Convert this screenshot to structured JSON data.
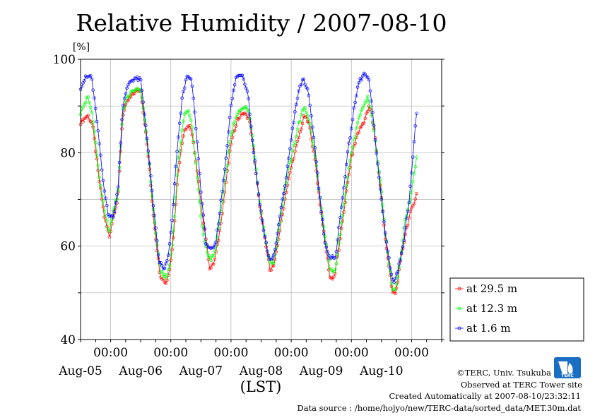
{
  "chart_data": {
    "type": "line",
    "title": "Relative Humidity / 2007-08-10",
    "unit_label": "[%]",
    "xlabel": "(LST)",
    "ylim": [
      40,
      100
    ],
    "yticks": [
      40,
      60,
      80,
      100
    ],
    "grid": true,
    "x_range_days": [
      -0.5,
      5.5
    ],
    "xticks": [
      {
        "time": "00:00",
        "date": "Aug-05"
      },
      {
        "time": "00:00",
        "date": "Aug-06"
      },
      {
        "time": "00:00",
        "date": "Aug-07"
      },
      {
        "time": "00:00",
        "date": "Aug-08"
      },
      {
        "time": "00:00",
        "date": "Aug-09"
      },
      {
        "time": "00:00",
        "date": "Aug-10"
      }
    ],
    "legend_position": "bottom-right outside",
    "series": [
      {
        "name": "at 29.5 m",
        "color": "#ff0000",
        "keypoints": [
          [
            -0.5,
            86.5
          ],
          [
            -0.38,
            88
          ],
          [
            -0.3,
            86
          ],
          [
            -0.2,
            75
          ],
          [
            -0.1,
            66
          ],
          [
            -0.02,
            62
          ],
          [
            0.05,
            67
          ],
          [
            0.12,
            70
          ],
          [
            0.2,
            88
          ],
          [
            0.28,
            91
          ],
          [
            0.4,
            93
          ],
          [
            0.5,
            93.5
          ],
          [
            0.62,
            80
          ],
          [
            0.72,
            65
          ],
          [
            0.82,
            54
          ],
          [
            0.92,
            52
          ],
          [
            0.98,
            55
          ],
          [
            1.05,
            63
          ],
          [
            1.12,
            76
          ],
          [
            1.22,
            85
          ],
          [
            1.32,
            86
          ],
          [
            1.4,
            80
          ],
          [
            1.5,
            69
          ],
          [
            1.58,
            62
          ],
          [
            1.65,
            55
          ],
          [
            1.72,
            56.5
          ],
          [
            1.8,
            62
          ],
          [
            1.9,
            72
          ],
          [
            2.0,
            82
          ],
          [
            2.1,
            87
          ],
          [
            2.2,
            88.5
          ],
          [
            2.3,
            87.5
          ],
          [
            2.38,
            80
          ],
          [
            2.48,
            68
          ],
          [
            2.58,
            60
          ],
          [
            2.65,
            55
          ],
          [
            2.72,
            56
          ],
          [
            2.82,
            64
          ],
          [
            2.92,
            72
          ],
          [
            3.02,
            78
          ],
          [
            3.12,
            83
          ],
          [
            3.22,
            88
          ],
          [
            3.3,
            86
          ],
          [
            3.4,
            78
          ],
          [
            3.48,
            69
          ],
          [
            3.56,
            61
          ],
          [
            3.65,
            53
          ],
          [
            3.72,
            53.5
          ],
          [
            3.8,
            60
          ],
          [
            3.9,
            70
          ],
          [
            4.0,
            79
          ],
          [
            4.1,
            84
          ],
          [
            4.22,
            87
          ],
          [
            4.3,
            90
          ],
          [
            4.38,
            85
          ],
          [
            4.48,
            73
          ],
          [
            4.56,
            62
          ],
          [
            4.63,
            55
          ],
          [
            4.68,
            50
          ],
          [
            4.74,
            50
          ],
          [
            4.82,
            57
          ],
          [
            4.9,
            63
          ],
          [
            4.98,
            67
          ],
          [
            5.08,
            71
          ],
          [
            5.1,
            72
          ]
        ]
      },
      {
        "name": "at 12.3 m",
        "color": "#00ff00",
        "keypoints": [
          [
            -0.5,
            88.5
          ],
          [
            -0.38,
            92
          ],
          [
            -0.3,
            88
          ],
          [
            -0.2,
            76
          ],
          [
            -0.1,
            67
          ],
          [
            -0.02,
            63
          ],
          [
            0.05,
            68
          ],
          [
            0.12,
            71
          ],
          [
            0.2,
            89
          ],
          [
            0.28,
            92
          ],
          [
            0.4,
            93.5
          ],
          [
            0.5,
            93.5
          ],
          [
            0.62,
            81
          ],
          [
            0.72,
            66
          ],
          [
            0.82,
            55
          ],
          [
            0.92,
            53
          ],
          [
            0.98,
            56
          ],
          [
            1.05,
            64
          ],
          [
            1.12,
            78
          ],
          [
            1.22,
            88
          ],
          [
            1.3,
            89
          ],
          [
            1.35,
            86
          ],
          [
            1.45,
            73
          ],
          [
            1.52,
            64
          ],
          [
            1.58,
            60
          ],
          [
            1.65,
            57
          ],
          [
            1.72,
            58
          ],
          [
            1.8,
            64
          ],
          [
            1.9,
            74
          ],
          [
            2.0,
            84
          ],
          [
            2.1,
            88
          ],
          [
            2.2,
            90
          ],
          [
            2.3,
            89
          ],
          [
            2.38,
            81
          ],
          [
            2.48,
            69
          ],
          [
            2.58,
            61
          ],
          [
            2.65,
            56
          ],
          [
            2.72,
            57
          ],
          [
            2.82,
            66
          ],
          [
            2.92,
            74
          ],
          [
            3.02,
            80
          ],
          [
            3.12,
            86
          ],
          [
            3.22,
            90
          ],
          [
            3.3,
            87
          ],
          [
            3.4,
            79
          ],
          [
            3.48,
            70
          ],
          [
            3.56,
            62
          ],
          [
            3.65,
            55
          ],
          [
            3.72,
            54
          ],
          [
            3.8,
            61
          ],
          [
            3.9,
            72
          ],
          [
            4.0,
            80
          ],
          [
            4.1,
            86
          ],
          [
            4.2,
            90
          ],
          [
            4.28,
            92
          ],
          [
            4.35,
            87
          ],
          [
            4.48,
            74
          ],
          [
            4.56,
            63
          ],
          [
            4.63,
            56
          ],
          [
            4.68,
            51
          ],
          [
            4.74,
            51
          ],
          [
            4.82,
            58
          ],
          [
            4.9,
            66
          ],
          [
            4.98,
            70
          ],
          [
            5.1,
            80.5
          ]
        ]
      },
      {
        "name": "at 1.6 m",
        "color": "#0000ff",
        "keypoints": [
          [
            -0.5,
            94
          ],
          [
            -0.42,
            96
          ],
          [
            -0.32,
            96.5
          ],
          [
            -0.22,
            86
          ],
          [
            -0.12,
            73
          ],
          [
            -0.04,
            67
          ],
          [
            0.04,
            66
          ],
          [
            0.12,
            72
          ],
          [
            0.2,
            90
          ],
          [
            0.3,
            95
          ],
          [
            0.4,
            96
          ],
          [
            0.5,
            95.5
          ],
          [
            0.6,
            84
          ],
          [
            0.7,
            70
          ],
          [
            0.8,
            57
          ],
          [
            0.88,
            55
          ],
          [
            0.95,
            57
          ],
          [
            1.02,
            65
          ],
          [
            1.1,
            80
          ],
          [
            1.2,
            93
          ],
          [
            1.28,
            96.5
          ],
          [
            1.35,
            95
          ],
          [
            1.42,
            85
          ],
          [
            1.5,
            72
          ],
          [
            1.58,
            61
          ],
          [
            1.66,
            59
          ],
          [
            1.74,
            60
          ],
          [
            1.82,
            68
          ],
          [
            1.9,
            77
          ],
          [
            2.0,
            90
          ],
          [
            2.08,
            96
          ],
          [
            2.18,
            97
          ],
          [
            2.28,
            93
          ],
          [
            2.36,
            82
          ],
          [
            2.46,
            71
          ],
          [
            2.56,
            62
          ],
          [
            2.64,
            57
          ],
          [
            2.72,
            58
          ],
          [
            2.82,
            67
          ],
          [
            2.92,
            75
          ],
          [
            3.02,
            85
          ],
          [
            3.12,
            93
          ],
          [
            3.2,
            96
          ],
          [
            3.28,
            93
          ],
          [
            3.38,
            83
          ],
          [
            3.48,
            70
          ],
          [
            3.56,
            61
          ],
          [
            3.64,
            57
          ],
          [
            3.74,
            58
          ],
          [
            3.84,
            69
          ],
          [
            3.94,
            80
          ],
          [
            4.04,
            89
          ],
          [
            4.12,
            95
          ],
          [
            4.22,
            97
          ],
          [
            4.3,
            95
          ],
          [
            4.38,
            85
          ],
          [
            4.48,
            72
          ],
          [
            4.56,
            63
          ],
          [
            4.64,
            56
          ],
          [
            4.7,
            52
          ],
          [
            4.78,
            55
          ],
          [
            4.88,
            62
          ],
          [
            4.96,
            70
          ],
          [
            5.06,
            85
          ],
          [
            5.1,
            91
          ]
        ]
      }
    ]
  },
  "footer": {
    "copyright": "©TERC, Univ. Tsukuba",
    "observed": "Observed at TERC Tower site",
    "created": "Created Automatically at 2007-08-10/23:32:11",
    "source": "Data source : /home/hojyo/new/TERC-data/sorted_data/MET.30m.dat"
  },
  "logo": {
    "text": "TERC",
    "color": "#1a6fc4"
  }
}
